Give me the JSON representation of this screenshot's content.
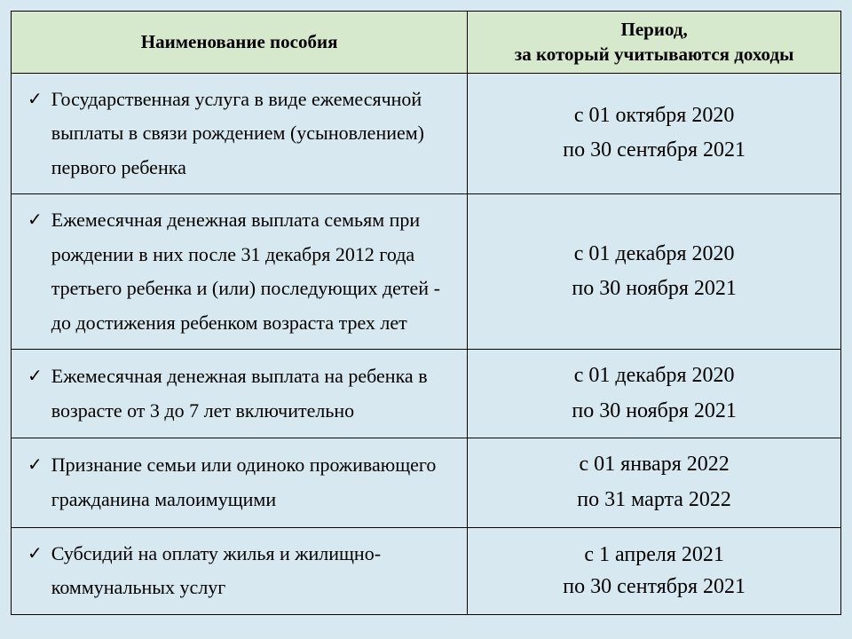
{
  "table": {
    "headers": {
      "name": "Наименование пособия",
      "period_line1": "Период,",
      "period_line2": "за который учитываются доходы"
    },
    "rows": [
      {
        "name": "Государственная услуга в виде ежемесячной выплаты в связи рождением (усыновлением) первого ребенка",
        "period_from": "с 01 октября 2020",
        "period_to": "по 30 сентября 2021"
      },
      {
        "name": "Ежемесячная денежная выплата семьям при рождении в них после 31 декабря 2012 года третьего ребенка и (или) последующих детей - до достижения ребенком возраста трех лет",
        "period_from": "с 01 декабря 2020",
        "period_to": "по 30 ноября 2021"
      },
      {
        "name": "Ежемесячная денежная выплата на ребенка в возрасте от 3 до 7 лет включительно",
        "period_from": "с 01 декабря 2020",
        "period_to": "по 30 ноября 2021"
      },
      {
        "name": "Признание семьи или одиноко проживающего гражданина малоимущими",
        "period_from": "с 01 января 2022",
        "period_to": "по 31 марта 2022"
      },
      {
        "name": "Субсидий на оплату жилья и жилищно-коммунальных услуг",
        "period_from": "с 1 апреля 2021",
        "period_to": "по 30 сентября 2021"
      }
    ]
  },
  "style": {
    "background_color": "#d7e8f0",
    "header_bg": "#d6e9cd",
    "border_color": "#000000",
    "font_family": "Times New Roman",
    "header_fontsize": 21,
    "body_fontsize": 22,
    "period_fontsize": 24,
    "checkmark": "✓"
  }
}
